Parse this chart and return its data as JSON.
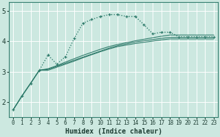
{
  "xlabel": "Humidex (Indice chaleur)",
  "xlim": [
    -0.5,
    23.5
  ],
  "ylim": [
    1.5,
    5.3
  ],
  "yticks": [
    2,
    3,
    4,
    5
  ],
  "xticks": [
    0,
    1,
    2,
    3,
    4,
    5,
    6,
    7,
    8,
    9,
    10,
    11,
    12,
    13,
    14,
    15,
    16,
    17,
    18,
    19,
    20,
    21,
    22,
    23
  ],
  "background_color": "#cce8e0",
  "grid_color": "#b0d8ce",
  "line_color": "#2d7a6a",
  "series": {
    "dotted_peak": {
      "x": [
        0,
        1,
        2,
        3,
        4,
        5,
        6,
        7,
        8,
        9,
        10,
        11,
        12,
        13,
        14,
        15,
        16,
        17,
        18,
        19,
        20,
        21,
        22,
        23
      ],
      "y": [
        1.75,
        2.2,
        2.62,
        3.05,
        3.55,
        3.25,
        3.5,
        4.1,
        4.6,
        4.72,
        4.82,
        4.88,
        4.88,
        4.82,
        4.82,
        4.55,
        4.25,
        4.3,
        4.3,
        4.15,
        4.15,
        4.15,
        4.15,
        4.15
      ]
    },
    "line1": {
      "x": [
        0,
        1,
        2,
        3,
        4,
        5,
        6,
        7,
        8,
        9,
        10,
        11,
        12,
        13,
        14,
        15,
        16,
        17,
        18,
        19,
        20,
        21,
        22,
        23
      ],
      "y": [
        1.75,
        2.2,
        2.62,
        3.05,
        3.1,
        3.2,
        3.32,
        3.43,
        3.54,
        3.64,
        3.74,
        3.83,
        3.9,
        3.96,
        4.02,
        4.07,
        4.12,
        4.17,
        4.21,
        4.21,
        4.21,
        4.21,
        4.21,
        4.21
      ]
    },
    "line2": {
      "x": [
        0,
        1,
        2,
        3,
        4,
        5,
        6,
        7,
        8,
        9,
        10,
        11,
        12,
        13,
        14,
        15,
        16,
        17,
        18,
        19,
        20,
        21,
        22,
        23
      ],
      "y": [
        1.75,
        2.2,
        2.62,
        3.05,
        3.08,
        3.18,
        3.28,
        3.38,
        3.48,
        3.58,
        3.68,
        3.78,
        3.86,
        3.92,
        3.98,
        4.02,
        4.06,
        4.1,
        4.13,
        4.13,
        4.13,
        4.13,
        4.13,
        4.13
      ]
    },
    "line3": {
      "x": [
        0,
        1,
        2,
        3,
        4,
        5,
        6,
        7,
        8,
        9,
        10,
        11,
        12,
        13,
        14,
        15,
        16,
        17,
        18,
        19,
        20,
        21,
        22,
        23
      ],
      "y": [
        1.75,
        2.2,
        2.62,
        3.05,
        3.05,
        3.15,
        3.25,
        3.35,
        3.46,
        3.56,
        3.66,
        3.75,
        3.83,
        3.88,
        3.93,
        3.97,
        4.01,
        4.05,
        4.08,
        4.08,
        4.08,
        4.08,
        4.08,
        4.08
      ]
    }
  }
}
